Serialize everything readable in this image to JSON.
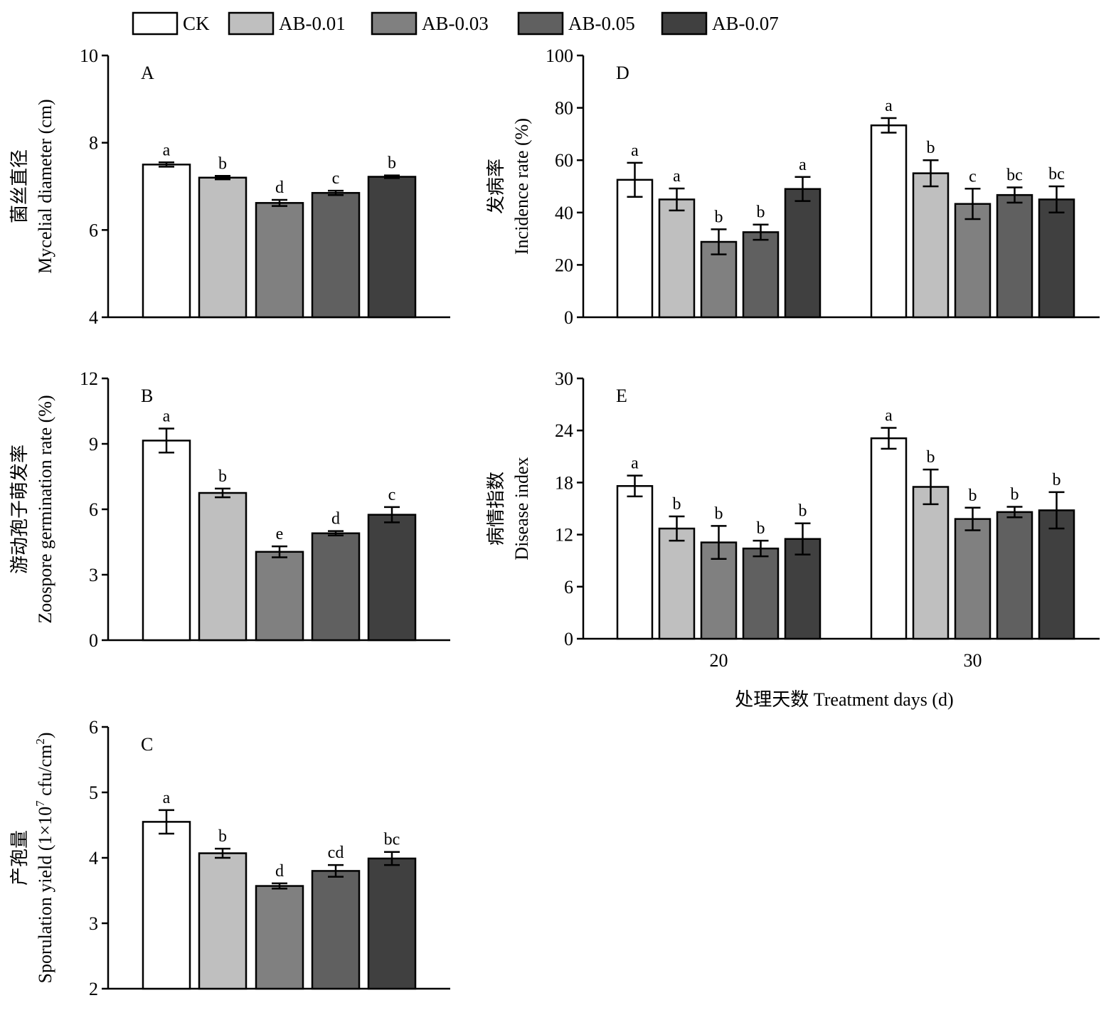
{
  "legend": {
    "items": [
      {
        "label": "CK",
        "color": "#ffffff"
      },
      {
        "label": "AB-0.01",
        "color": "#bfbfbf"
      },
      {
        "label": "AB-0.03",
        "color": "#808080"
      },
      {
        "label": "AB-0.05",
        "color": "#606060"
      },
      {
        "label": "AB-0.07",
        "color": "#404040"
      }
    ]
  },
  "shared_xlabel": "处理天数 Treatment days (d)",
  "chart_data": [
    {
      "panel": "A",
      "type": "bar",
      "ylabel_cn": "菌丝直径",
      "ylabel_en": "Mycelial diameter (cm)",
      "ylim": [
        4,
        10
      ],
      "yticks": [
        "4",
        "6",
        "8",
        "10"
      ],
      "categories": [
        "CK",
        "AB-0.01",
        "AB-0.03",
        "AB-0.05",
        "AB-0.07"
      ],
      "values": [
        7.5,
        7.2,
        6.62,
        6.85,
        7.22
      ],
      "errors": [
        0.05,
        0.04,
        0.07,
        0.05,
        0.03
      ],
      "sig": [
        "a",
        "b",
        "d",
        "c",
        "b"
      ]
    },
    {
      "panel": "B",
      "type": "bar",
      "ylabel_cn": "游动孢子萌发率",
      "ylabel_en": "Zoospore germination rate (%)",
      "ylim": [
        0,
        12
      ],
      "yticks": [
        "0",
        "3",
        "6",
        "9",
        "12"
      ],
      "categories": [
        "CK",
        "AB-0.01",
        "AB-0.03",
        "AB-0.05",
        "AB-0.07"
      ],
      "values": [
        9.15,
        6.75,
        4.05,
        4.9,
        5.75
      ],
      "errors": [
        0.55,
        0.2,
        0.25,
        0.1,
        0.35
      ],
      "sig": [
        "a",
        "b",
        "e",
        "d",
        "c"
      ]
    },
    {
      "panel": "C",
      "type": "bar",
      "ylabel_cn": "产孢量",
      "ylabel_en": "Sporulation yield (1×10",
      "ylabel_sup": "7",
      "ylabel_en2": " cfu/cm",
      "ylabel_sup2": "2",
      "ylabel_end": ")",
      "ylim": [
        2,
        6
      ],
      "yticks": [
        "2",
        "3",
        "4",
        "5",
        "6"
      ],
      "categories": [
        "CK",
        "AB-0.01",
        "AB-0.03",
        "AB-0.05",
        "AB-0.07"
      ],
      "values": [
        4.55,
        4.07,
        3.57,
        3.8,
        3.99
      ],
      "errors": [
        0.18,
        0.07,
        0.04,
        0.09,
        0.1
      ],
      "sig": [
        "a",
        "b",
        "d",
        "cd",
        "bc"
      ]
    },
    {
      "panel": "D",
      "type": "bar",
      "ylabel_cn": "发病率",
      "ylabel_en": "Incidence rate (%)",
      "ylim": [
        0,
        100
      ],
      "yticks": [
        "0",
        "20",
        "40",
        "60",
        "80",
        "100"
      ],
      "groups": [
        "20",
        "30"
      ],
      "series": [
        {
          "name": "CK",
          "values": [
            52.5,
            73.3
          ],
          "errors": [
            6.5,
            2.8
          ],
          "sig": [
            "a",
            "a"
          ]
        },
        {
          "name": "AB-0.01",
          "values": [
            45.0,
            55.0
          ],
          "errors": [
            4.2,
            5.0
          ],
          "sig": [
            "a",
            "b"
          ]
        },
        {
          "name": "AB-0.03",
          "values": [
            28.8,
            43.3
          ],
          "errors": [
            4.8,
            5.8
          ],
          "sig": [
            "b",
            "c"
          ]
        },
        {
          "name": "AB-0.05",
          "values": [
            32.5,
            46.7
          ],
          "errors": [
            2.9,
            2.9
          ],
          "sig": [
            "b",
            "bc"
          ]
        },
        {
          "name": "AB-0.07",
          "values": [
            49.0,
            45.0
          ],
          "errors": [
            4.6,
            5.0
          ],
          "sig": [
            "a",
            "bc"
          ]
        }
      ]
    },
    {
      "panel": "E",
      "type": "bar",
      "ylabel_cn": "病情指数",
      "ylabel_en": "Disease index",
      "ylim": [
        0,
        30
      ],
      "yticks": [
        "0",
        "6",
        "12",
        "18",
        "24",
        "30"
      ],
      "groups": [
        "20",
        "30"
      ],
      "series": [
        {
          "name": "CK",
          "values": [
            17.6,
            23.1
          ],
          "errors": [
            1.2,
            1.2
          ],
          "sig": [
            "a",
            "a"
          ]
        },
        {
          "name": "AB-0.01",
          "values": [
            12.7,
            17.5
          ],
          "errors": [
            1.4,
            2.0
          ],
          "sig": [
            "b",
            "b"
          ]
        },
        {
          "name": "AB-0.03",
          "values": [
            11.1,
            13.8
          ],
          "errors": [
            1.9,
            1.3
          ],
          "sig": [
            "b",
            "b"
          ]
        },
        {
          "name": "AB-0.05",
          "values": [
            10.4,
            14.6
          ],
          "errors": [
            0.9,
            0.6
          ],
          "sig": [
            "b",
            "b"
          ]
        },
        {
          "name": "AB-0.07",
          "values": [
            11.5,
            14.8
          ],
          "errors": [
            1.8,
            2.1
          ],
          "sig": [
            "b",
            "b"
          ]
        }
      ]
    }
  ]
}
